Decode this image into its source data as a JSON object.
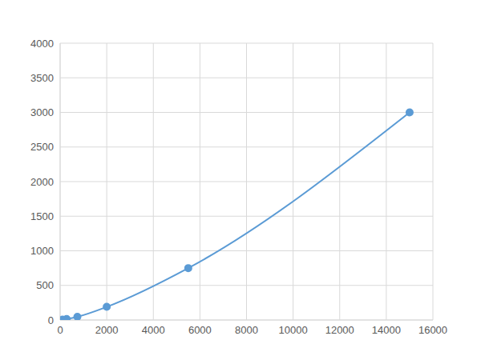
{
  "chart_data": {
    "type": "line",
    "x": [
      100,
      280,
      740,
      2000,
      5500,
      15000
    ],
    "values": [
      5,
      15,
      47,
      190,
      750,
      3000
    ],
    "color": "#5b9bd5",
    "marker": "circle",
    "xlim": [
      0,
      16000
    ],
    "ylim": [
      0,
      4000
    ],
    "xticks": [
      0,
      2000,
      4000,
      6000,
      8000,
      10000,
      12000,
      14000,
      16000
    ],
    "yticks": [
      0,
      500,
      1000,
      1500,
      2000,
      2500,
      3000,
      3500,
      4000
    ],
    "grid": true
  }
}
